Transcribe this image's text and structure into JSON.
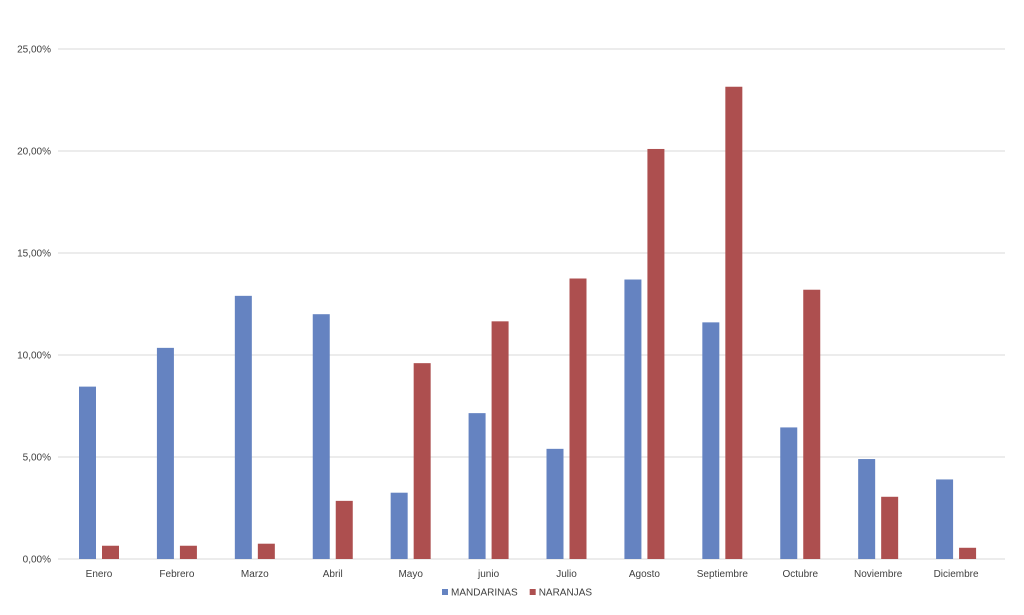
{
  "chart_data": {
    "type": "bar",
    "categories": [
      "Enero",
      "Febrero",
      "Marzo",
      "Abril",
      "Mayo",
      "junio",
      "Julio",
      "Agosto",
      "Septiembre",
      "Octubre",
      "Noviembre",
      "Diciembre"
    ],
    "series": [
      {
        "name": "MANDARINAS",
        "color": "#6583c1",
        "values": [
          8.45,
          10.35,
          12.9,
          12.0,
          3.25,
          7.15,
          5.4,
          13.7,
          11.6,
          6.45,
          4.9,
          3.9
        ]
      },
      {
        "name": "NARANJAS",
        "color": "#ad4f4f",
        "values": [
          0.65,
          0.65,
          0.75,
          2.85,
          9.6,
          11.65,
          13.75,
          20.1,
          23.15,
          13.2,
          3.05,
          0.55
        ]
      }
    ],
    "yticks": [
      "0,00%",
      "5,00%",
      "10,00%",
      "15,00%",
      "20,00%",
      "25,00%"
    ],
    "ylim": [
      0,
      25
    ],
    "grid": true,
    "legend_position": "bottom",
    "title": "",
    "xlabel": "",
    "ylabel": ""
  }
}
